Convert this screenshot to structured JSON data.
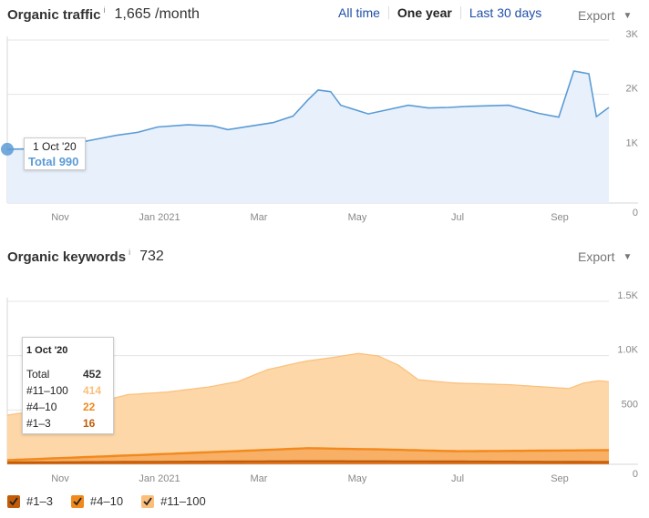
{
  "traffic": {
    "title": "Organic traffic",
    "info": "i",
    "value": "1,665 /month",
    "ranges": [
      "All time",
      "One year",
      "Last 30 days"
    ],
    "active_range": "One year",
    "export_label": "Export",
    "tooltip": {
      "date": "1 Oct '20",
      "total": "Total 990"
    }
  },
  "keywords": {
    "title": "Organic keywords",
    "info": "i",
    "value": "732",
    "export_label": "Export",
    "tooltip": {
      "date": "1 Oct '20",
      "rows": [
        {
          "label": "Total",
          "value": "452",
          "color": "#222222"
        },
        {
          "label": "#11–100",
          "value": "414",
          "color": "#fbbf7a"
        },
        {
          "label": "#4–10",
          "value": "22",
          "color": "#f2891d"
        },
        {
          "label": "#1–3",
          "value": "16",
          "color": "#c15d0a"
        }
      ]
    },
    "legend": [
      {
        "label": "#1–3",
        "color": "#c15d0a"
      },
      {
        "label": "#4–10",
        "color": "#f2891d"
      },
      {
        "label": "#11–100",
        "color": "#fbbf7a"
      }
    ]
  },
  "chart_data": [
    {
      "type": "area",
      "x_labels": [
        "Nov",
        "Jan 2021",
        "Mar",
        "May",
        "Jul",
        "Sep"
      ],
      "y_ticks": [
        "0",
        "1K",
        "2K",
        "3K"
      ],
      "ylim": [
        0,
        3000
      ],
      "grid": true,
      "color": "#5b9bd5",
      "series": [
        {
          "x": [
            0.0,
            0.8,
            1.3,
            1.8,
            2.2,
            2.6,
            3.0,
            3.6,
            4.1,
            4.4,
            4.8,
            5.3,
            5.7,
            6.0,
            6.2,
            6.45,
            6.65,
            7.2,
            7.6,
            8.0,
            8.4,
            8.8,
            9.2,
            9.6,
            10.0,
            10.6,
            11.0,
            11.3,
            11.6,
            11.75,
            12.0
          ],
          "y": [
            990,
            1000,
            1090,
            1180,
            1250,
            1300,
            1400,
            1440,
            1420,
            1350,
            1410,
            1480,
            1600,
            1900,
            2080,
            2050,
            1800,
            1640,
            1720,
            1800,
            1750,
            1760,
            1780,
            1790,
            1800,
            1650,
            1580,
            2430,
            2380,
            1590,
            1760
          ]
        }
      ]
    },
    {
      "type": "area",
      "stacked": true,
      "x_labels": [
        "Nov",
        "Jan 2021",
        "Mar",
        "May",
        "Jul",
        "Sep"
      ],
      "y_ticks": [
        "0",
        "500",
        "1.0K",
        "1.5K"
      ],
      "ylim": [
        0,
        1500
      ],
      "grid": true,
      "series": [
        {
          "name": "#1–3",
          "color": "#c15d0a",
          "x": [
            0,
            3,
            6,
            9,
            12
          ],
          "y": [
            16,
            22,
            28,
            25,
            20
          ]
        },
        {
          "name": "#4–10",
          "color": "#f2891d",
          "x": [
            0,
            3,
            6,
            7.5,
            9,
            12
          ],
          "y": [
            22,
            70,
            120,
            110,
            95,
            110
          ]
        },
        {
          "name": "#11–100",
          "color": "#fbbf7a",
          "x": [
            0,
            0.8,
            1.6,
            2.4,
            3.2,
            4.0,
            4.6,
            5.2,
            5.8,
            6.5,
            7.0,
            7.4,
            7.8,
            8.2,
            8.8,
            9.4,
            10.0,
            10.6,
            11.2,
            11.5,
            11.8,
            12.0
          ],
          "y": [
            414,
            455,
            480,
            560,
            570,
            600,
            640,
            740,
            790,
            840,
            880,
            860,
            780,
            650,
            630,
            620,
            610,
            590,
            570,
            620,
            640,
            630
          ]
        }
      ]
    }
  ]
}
